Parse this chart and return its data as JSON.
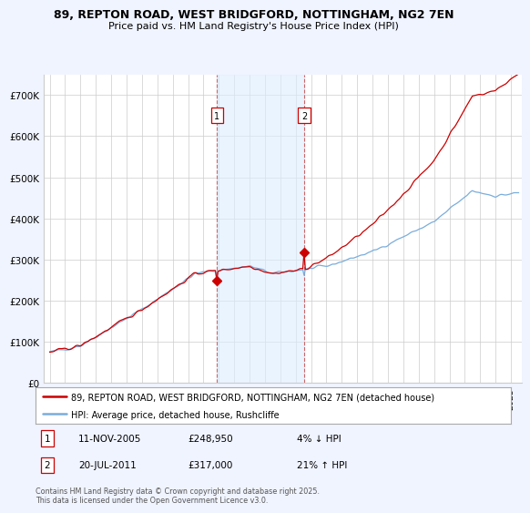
{
  "title_line1": "89, REPTON ROAD, WEST BRIDGFORD, NOTTINGHAM, NG2 7EN",
  "title_line2": "Price paid vs. HM Land Registry's House Price Index (HPI)",
  "ylim": [
    0,
    750000
  ],
  "yticks": [
    0,
    100000,
    200000,
    300000,
    400000,
    500000,
    600000,
    700000
  ],
  "ytick_labels": [
    "£0",
    "£100K",
    "£200K",
    "£300K",
    "£400K",
    "£500K",
    "£600K",
    "£700K"
  ],
  "line_color_hpi": "#7aaddc",
  "line_color_price": "#cc0000",
  "sale1_date": 2005.87,
  "sale1_price": 248950,
  "sale2_date": 2011.55,
  "sale2_price": 317000,
  "legend_line1": "89, REPTON ROAD, WEST BRIDGFORD, NOTTINGHAM, NG2 7EN (detached house)",
  "legend_line2": "HPI: Average price, detached house, Rushcliffe",
  "footnote": "Contains HM Land Registry data © Crown copyright and database right 2025.\nThis data is licensed under the Open Government Licence v3.0.",
  "bg_color": "#f0f4ff",
  "plot_bg_color": "#ffffff",
  "grid_color": "#cccccc",
  "sale_shade_color": "#ddeeff"
}
